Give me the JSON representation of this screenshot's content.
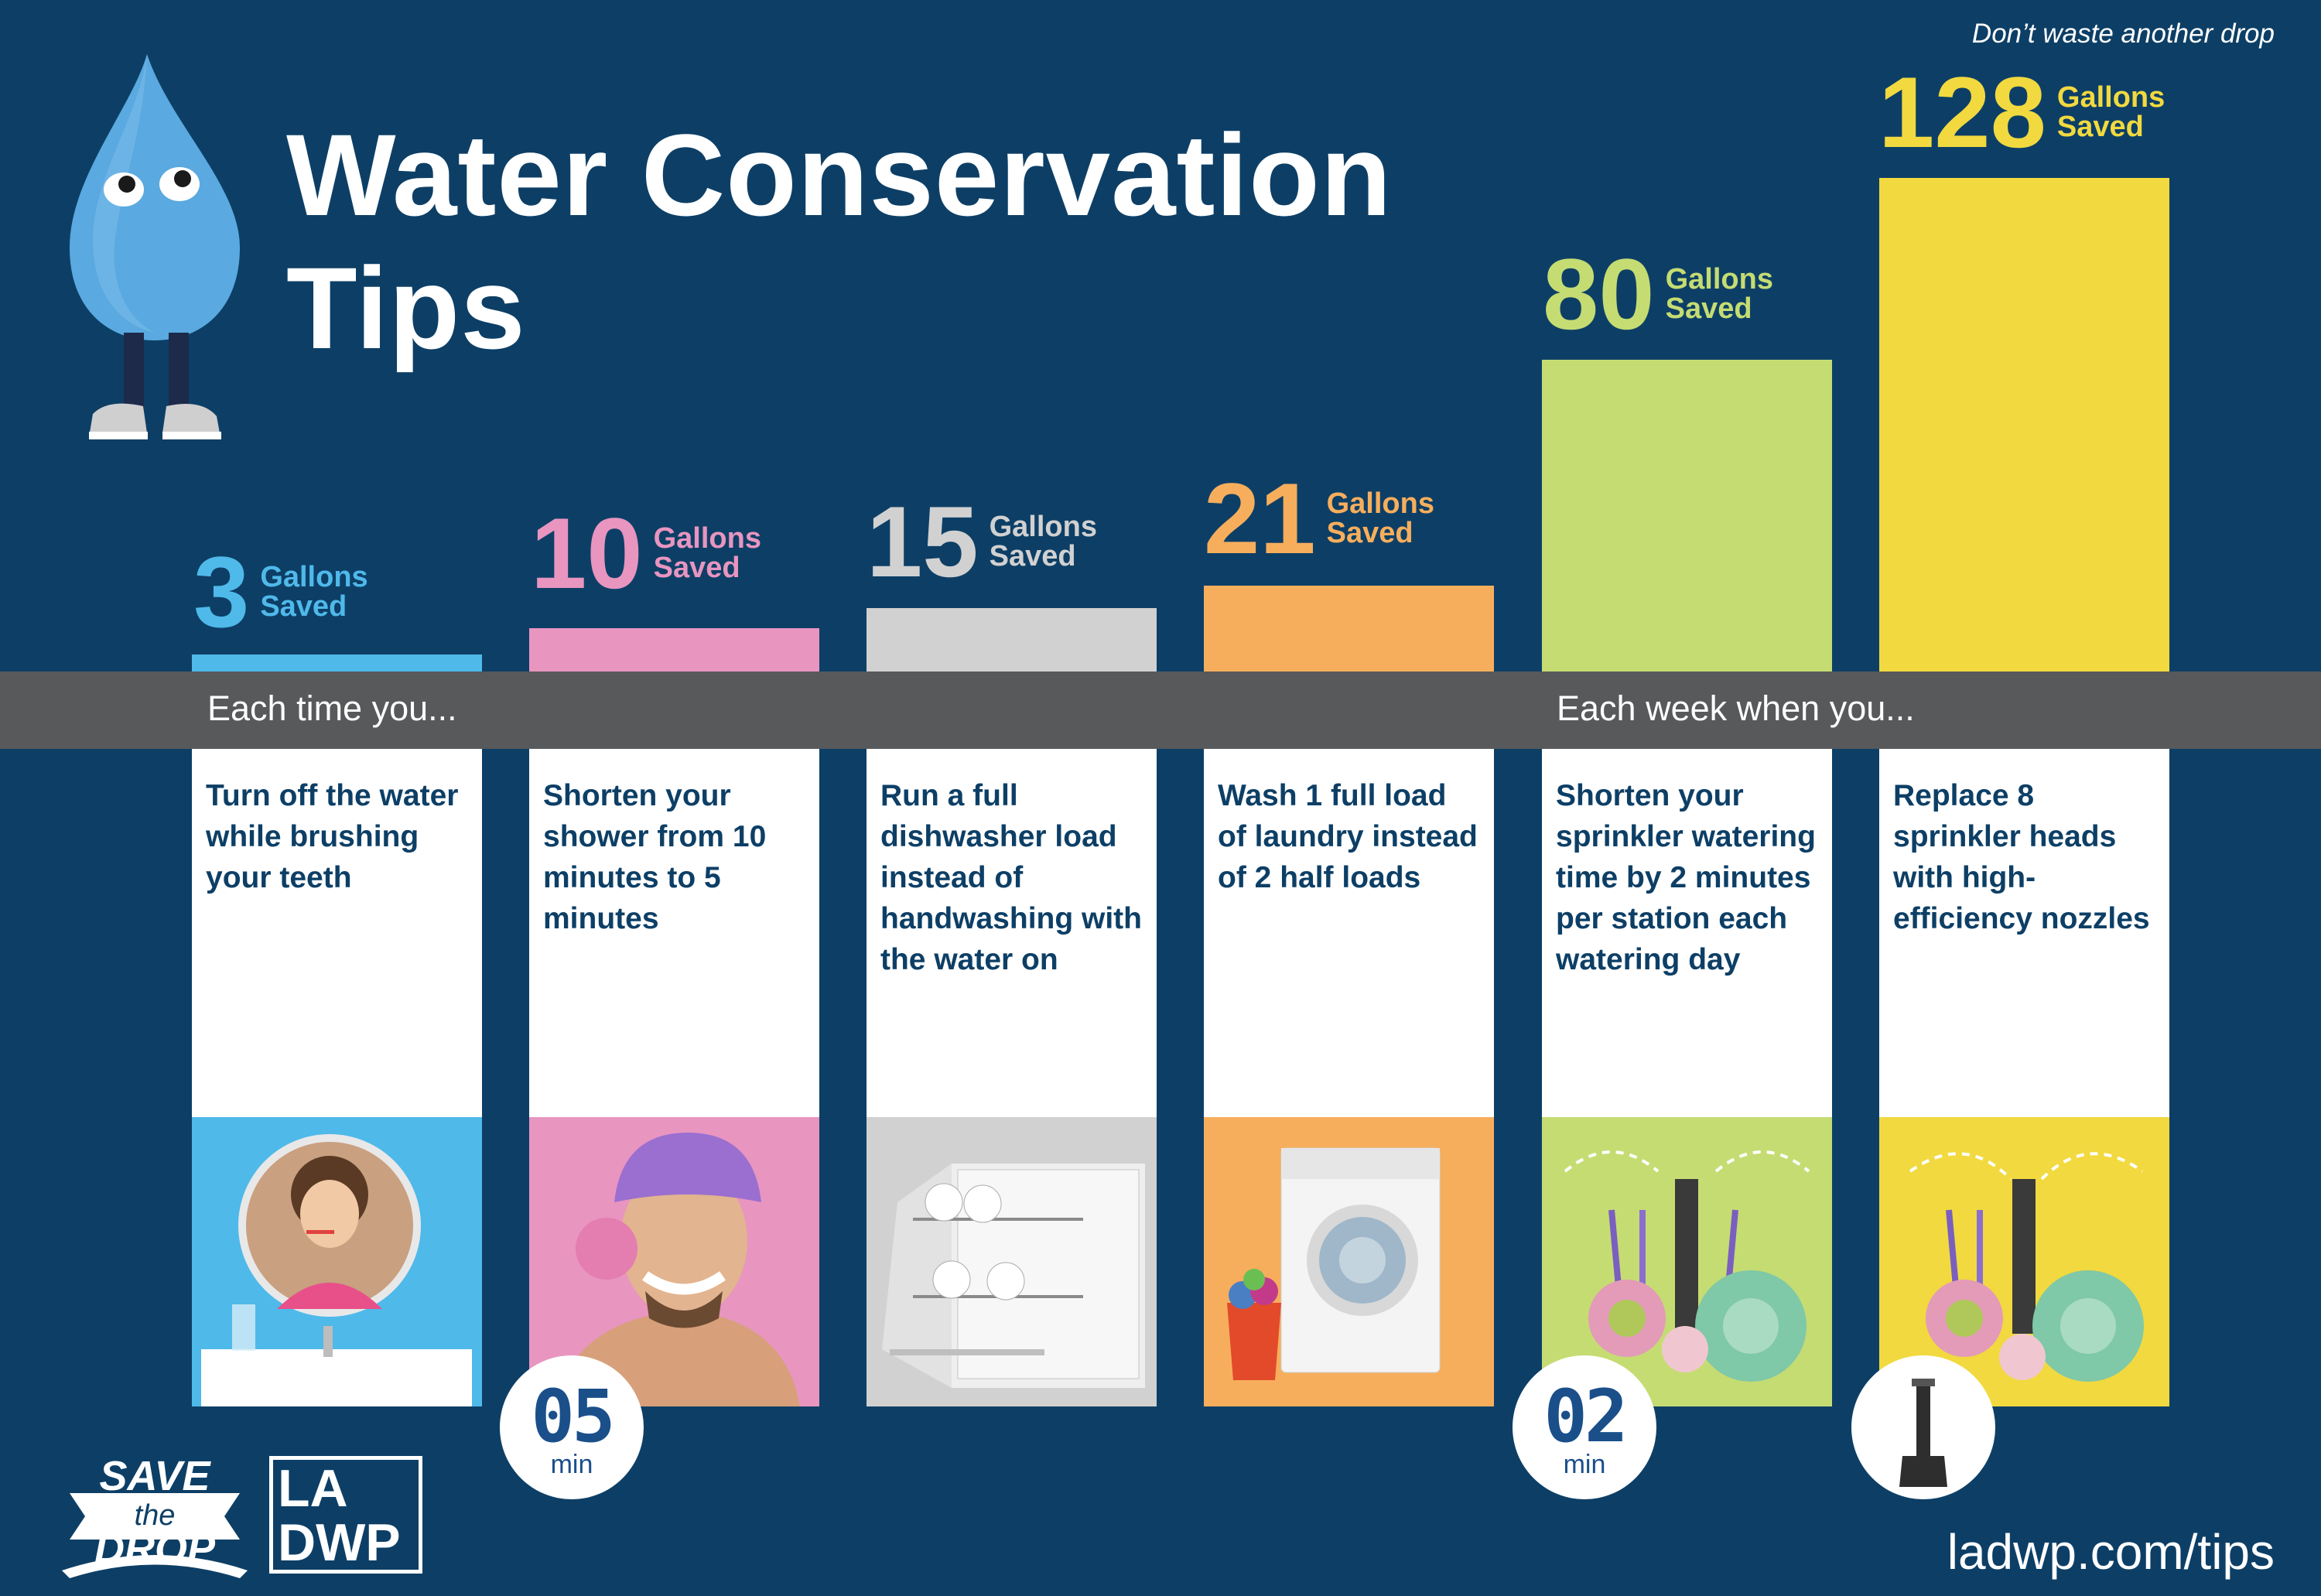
{
  "tagline": "Don’t waste another drop",
  "title": {
    "line1": "Water Conservation",
    "line2": "Tips"
  },
  "bands": {
    "left": "Each time you...",
    "right": "Each week when you..."
  },
  "tips": [
    {
      "gallons": "3",
      "unit1": "Gallons",
      "unit2": "Saved",
      "color": "#4fb9ea",
      "text": "Turn off the water while brushing your teeth",
      "pre": "",
      "b1": "",
      "mid": "",
      "b2": "",
      "post": "",
      "image": "child-brushing-teeth-image"
    },
    {
      "gallons": "10",
      "unit1": "Gallons",
      "unit2": "Saved",
      "color": "#e895c0",
      "pre": "Shorten your shower from ",
      "b1": "10",
      "mid": " minutes to ",
      "b2": "5",
      "post": " minutes",
      "badge": "05",
      "badge_unit": "min"
    },
    {
      "gallons": "15",
      "unit1": "Gallons",
      "unit2": "Saved",
      "color": "#d1d1d1",
      "text": "Run a full dishwasher load instead of handwashing with the water on"
    },
    {
      "gallons": "21",
      "unit1": "Gallons",
      "unit2": "Saved",
      "color": "#f7ae5c",
      "pre": "Wash ",
      "b1": "1",
      "mid": " full load of laundry instead of ",
      "b2": "2",
      "post": " half loads"
    },
    {
      "gallons": "80",
      "unit1": "Gallons",
      "unit2": "Saved",
      "color": "#c5dc72",
      "pre": "Shorten your sprinkler watering time by ",
      "b1": "2",
      "mid": " minutes per station each watering day",
      "b2": "",
      "post": "",
      "badge": "02",
      "badge_unit": "min"
    },
    {
      "gallons": "128",
      "unit1": "Gallons",
      "unit2": "Saved",
      "color": "#f1d93f",
      "pre": "Replace ",
      "b1": "8",
      "mid": " sprinkler heads with high-efficiency nozzles",
      "b2": "",
      "post": ""
    }
  ],
  "logos": {
    "save_the_drop": [
      "SAVE",
      "the",
      "DROP"
    ],
    "ladwp": [
      "LA",
      "DWP"
    ]
  },
  "url": "ladwp.com/tips",
  "colors": {
    "background": "#0d3f66",
    "band": "#58595b"
  }
}
